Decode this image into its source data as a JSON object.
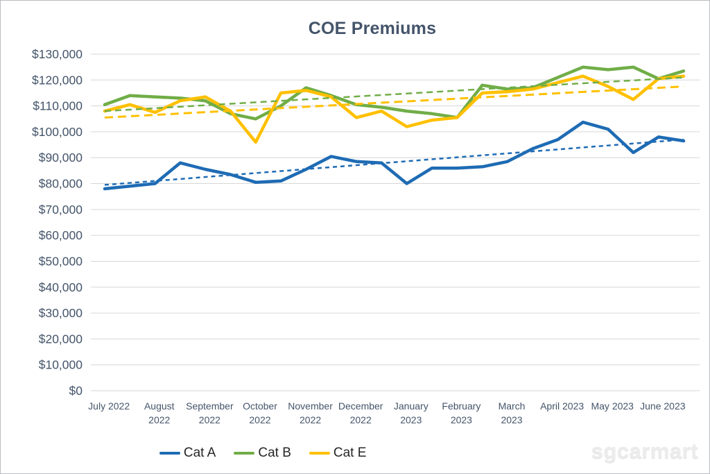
{
  "title": "COE Premiums",
  "watermark": "sgcarmart",
  "colors": {
    "cat_a": "#1e6bb4",
    "cat_b": "#70ad47",
    "cat_e": "#ffc000",
    "title_text": "#44546a",
    "axis_text": "#44546a",
    "gridline": "#d6d6d6",
    "legend_text": "#262626"
  },
  "legend": [
    {
      "label": "Cat A",
      "color": "#1e6bb4"
    },
    {
      "label": "Cat B",
      "color": "#70ad47"
    },
    {
      "label": "Cat E",
      "color": "#ffc000"
    }
  ],
  "chart_data": {
    "type": "line",
    "title": "COE Premiums",
    "grid": true,
    "legend_position": "bottom",
    "ylim": [
      0,
      130000
    ],
    "y_tick_step": 10000,
    "y_tick_labels": [
      "$0",
      "$10,000",
      "$20,000",
      "$30,000",
      "$40,000",
      "$50,000",
      "$60,000",
      "$70,000",
      "$80,000",
      "$90,000",
      "$100,000",
      "$110,000",
      "$120,000",
      "$130,000"
    ],
    "points_per_month": 2,
    "x_categories_months": [
      {
        "line1": "July 2022",
        "line2": ""
      },
      {
        "line1": "August",
        "line2": "2022"
      },
      {
        "line1": "September",
        "line2": "2022"
      },
      {
        "line1": "October",
        "line2": "2022"
      },
      {
        "line1": "November",
        "line2": "2022"
      },
      {
        "line1": "December",
        "line2": "2022"
      },
      {
        "line1": "January",
        "line2": "2023"
      },
      {
        "line1": "February",
        "line2": "2023"
      },
      {
        "line1": "March",
        "line2": "2023"
      },
      {
        "line1": "April 2023",
        "line2": ""
      },
      {
        "line1": "May 2023",
        "line2": ""
      },
      {
        "line1": "June 2023",
        "line2": ""
      }
    ],
    "series": [
      {
        "name": "Cat A",
        "color": "#1e6bb4",
        "values": [
          78000,
          79000,
          80000,
          88000,
          85500,
          83500,
          80500,
          81000,
          85500,
          90500,
          88500,
          88000,
          80000,
          86000,
          86000,
          86500,
          88500,
          93500,
          97000,
          103700,
          101000,
          92000,
          98000,
          96500
        ],
        "trendline": {
          "start": 79500,
          "end": 97000
        }
      },
      {
        "name": "Cat B",
        "color": "#70ad47",
        "values": [
          110500,
          114000,
          113500,
          113000,
          112000,
          107000,
          105000,
          110000,
          117000,
          114000,
          110500,
          109500,
          108000,
          107000,
          105500,
          118000,
          116500,
          117000,
          121000,
          125000,
          124000,
          125000,
          120500,
          123500
        ],
        "trendline": {
          "start": 108000,
          "end": 121000
        }
      },
      {
        "name": "Cat E",
        "color": "#ffc000",
        "values": [
          108000,
          110500,
          107500,
          112000,
          113500,
          108000,
          96000,
          115000,
          116000,
          113500,
          105500,
          108000,
          102000,
          104500,
          105500,
          115000,
          115500,
          116500,
          119000,
          121500,
          117500,
          112500,
          120500,
          121500
        ],
        "trendline": {
          "start": 105500,
          "end": 117500
        }
      }
    ]
  }
}
